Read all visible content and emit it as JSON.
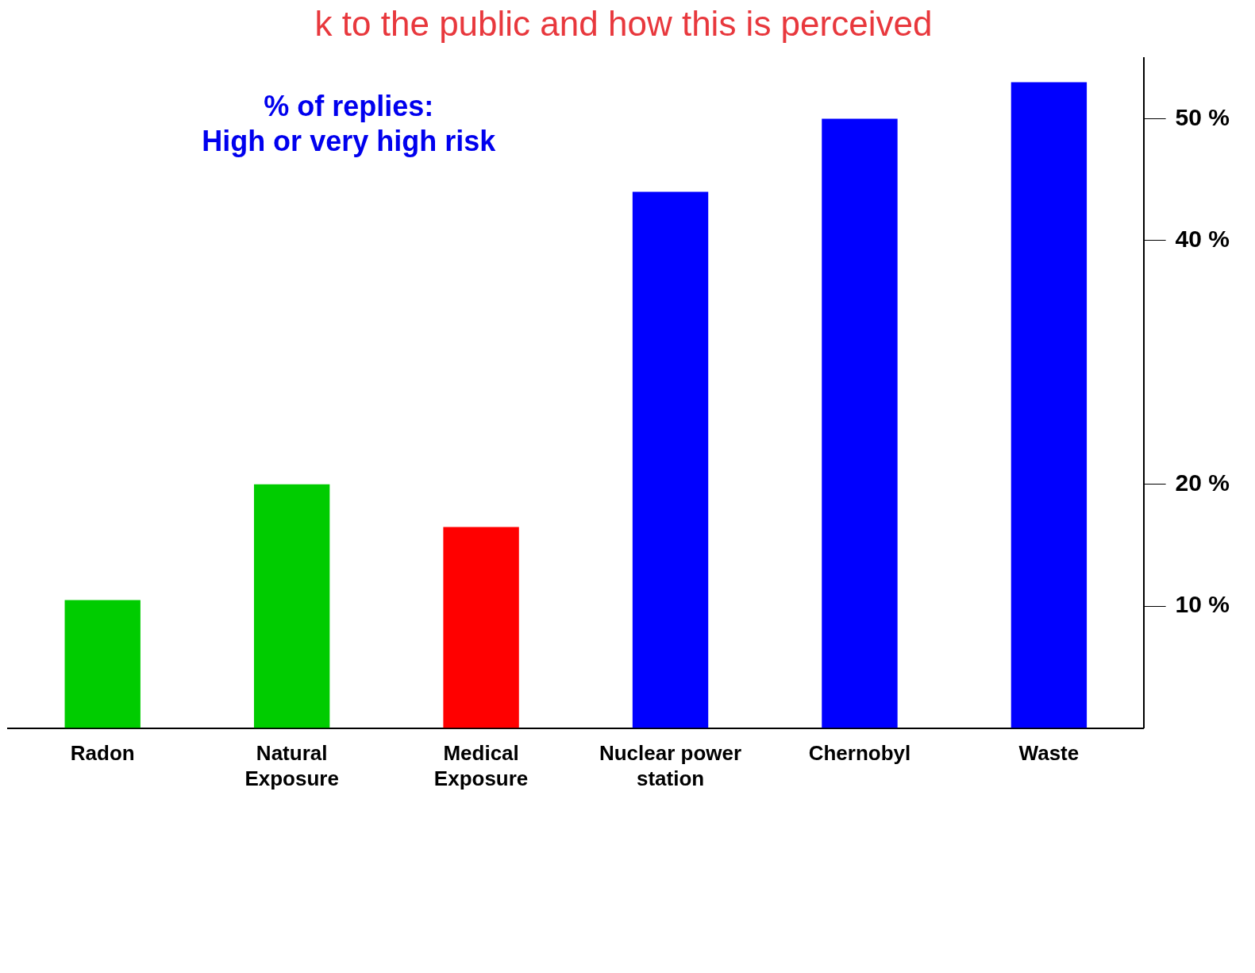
{
  "chart_data": {
    "type": "bar",
    "title": "k to the public and how this is perceived",
    "subtitle": [
      "% of replies:",
      "High or very high risk"
    ],
    "categories": [
      "Radon",
      "Natural Exposure",
      "Medical Exposure",
      "Nuclear power station",
      "Chernobyl",
      "Waste"
    ],
    "values": [
      10.5,
      20,
      16.5,
      44,
      50,
      53
    ],
    "colors": [
      "#00cc00",
      "#00cc00",
      "#ff0000",
      "#0000ff",
      "#0000ff",
      "#0000ff"
    ],
    "ylim": [
      0,
      55
    ],
    "yticks": [
      {
        "value": 10,
        "label": "10 %"
      },
      {
        "value": 20,
        "label": "20 %"
      },
      {
        "value": 40,
        "label": "40 %"
      },
      {
        "value": 50,
        "label": "50 %"
      }
    ],
    "grid": false
  }
}
